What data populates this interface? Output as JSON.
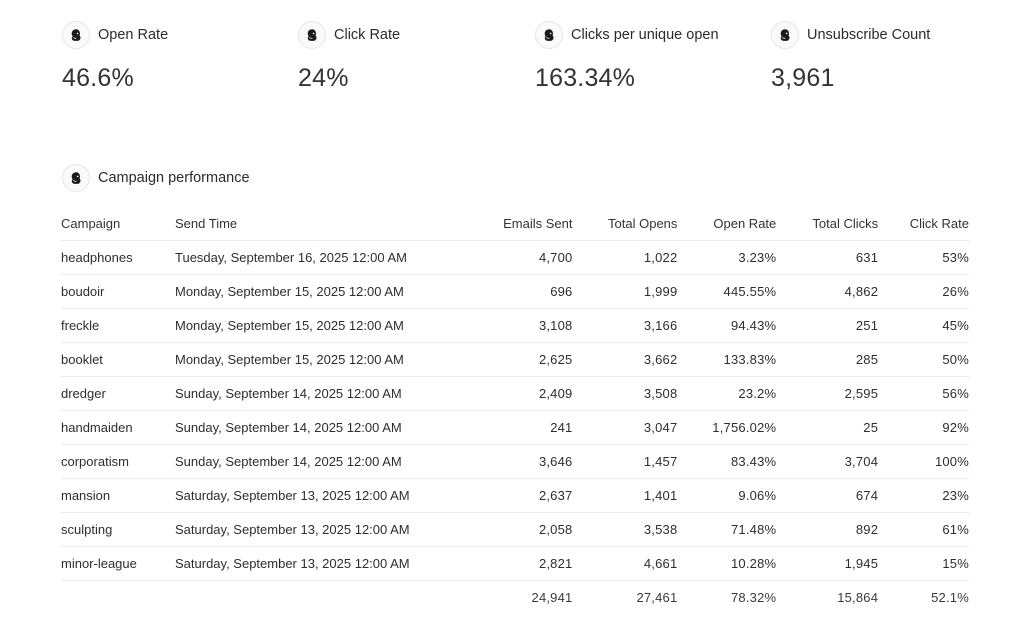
{
  "metrics": [
    {
      "label": "Open Rate",
      "value": "46.6%",
      "icon": "mailchimp-logo-icon"
    },
    {
      "label": "Click Rate",
      "value": "24%",
      "icon": "mailchimp-logo-icon"
    },
    {
      "label": "Clicks per unique open",
      "value": "163.34%",
      "icon": "mailchimp-logo-icon"
    },
    {
      "label": "Unsubscribe Count",
      "value": "3,961",
      "icon": "mailchimp-logo-icon"
    }
  ],
  "campaign_section": {
    "title": "Campaign performance",
    "icon": "mailchimp-logo-icon"
  },
  "table": {
    "columns": [
      "Campaign",
      "Send Time",
      "Emails Sent",
      "Total Opens",
      "Open Rate",
      "Total Clicks",
      "Click Rate"
    ],
    "rows": [
      [
        "headphones",
        "Tuesday, September 16, 2025 12:00 AM",
        "4,700",
        "1,022",
        "3.23%",
        "631",
        "53%"
      ],
      [
        "boudoir",
        "Monday, September 15, 2025 12:00 AM",
        "696",
        "1,999",
        "445.55%",
        "4,862",
        "26%"
      ],
      [
        "freckle",
        "Monday, September 15, 2025 12:00 AM",
        "3,108",
        "3,166",
        "94.43%",
        "251",
        "45%"
      ],
      [
        "booklet",
        "Monday, September 15, 2025 12:00 AM",
        "2,625",
        "3,662",
        "133.83%",
        "285",
        "50%"
      ],
      [
        "dredger",
        "Sunday, September 14, 2025 12:00 AM",
        "2,409",
        "3,508",
        "23.2%",
        "2,595",
        "56%"
      ],
      [
        "handmaiden",
        "Sunday, September 14, 2025 12:00 AM",
        "241",
        "3,047",
        "1,756.02%",
        "25",
        "92%"
      ],
      [
        "corporatism",
        "Sunday, September 14, 2025 12:00 AM",
        "3,646",
        "1,457",
        "83.43%",
        "3,704",
        "100%"
      ],
      [
        "mansion",
        "Saturday, September 13, 2025 12:00 AM",
        "2,637",
        "1,401",
        "9.06%",
        "674",
        "23%"
      ],
      [
        "sculpting",
        "Saturday, September 13, 2025 12:00 AM",
        "2,058",
        "3,538",
        "71.48%",
        "892",
        "61%"
      ],
      [
        "minor-league",
        "Saturday, September 13, 2025 12:00 AM",
        "2,821",
        "4,661",
        "10.28%",
        "1,945",
        "15%"
      ]
    ],
    "totals": [
      "",
      "",
      "24,941",
      "27,461",
      "78.32%",
      "15,864",
      "52.1%"
    ]
  }
}
